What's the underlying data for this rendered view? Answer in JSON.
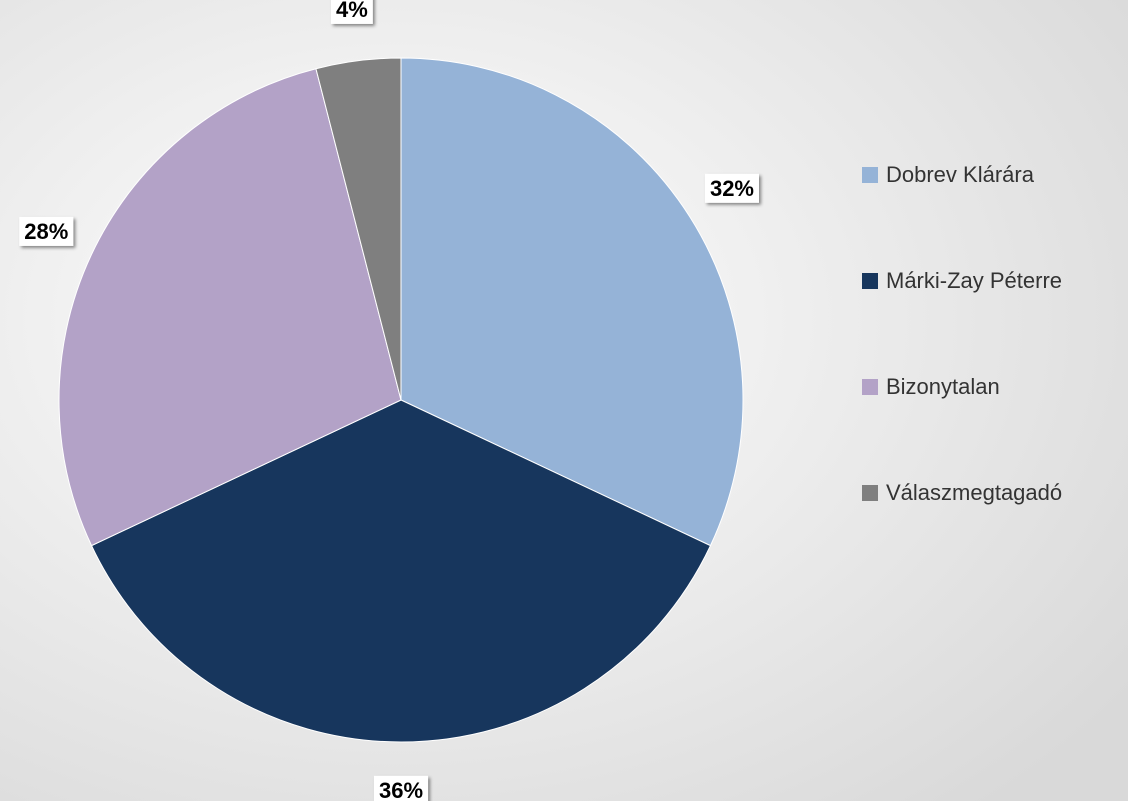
{
  "chart_data": {
    "type": "pie",
    "categories": [
      "Dobrev Klárára",
      "Márki-Zay Péterre",
      "Bizonytalan",
      "Válaszmegtagadó"
    ],
    "values": [
      32,
      36,
      28,
      4
    ],
    "value_labels": [
      "32%",
      "36%",
      "28%",
      "4%"
    ],
    "colors": [
      "#95b3d7",
      "#17365d",
      "#b3a2c7",
      "#7f7f7f"
    ],
    "legend": "right"
  }
}
